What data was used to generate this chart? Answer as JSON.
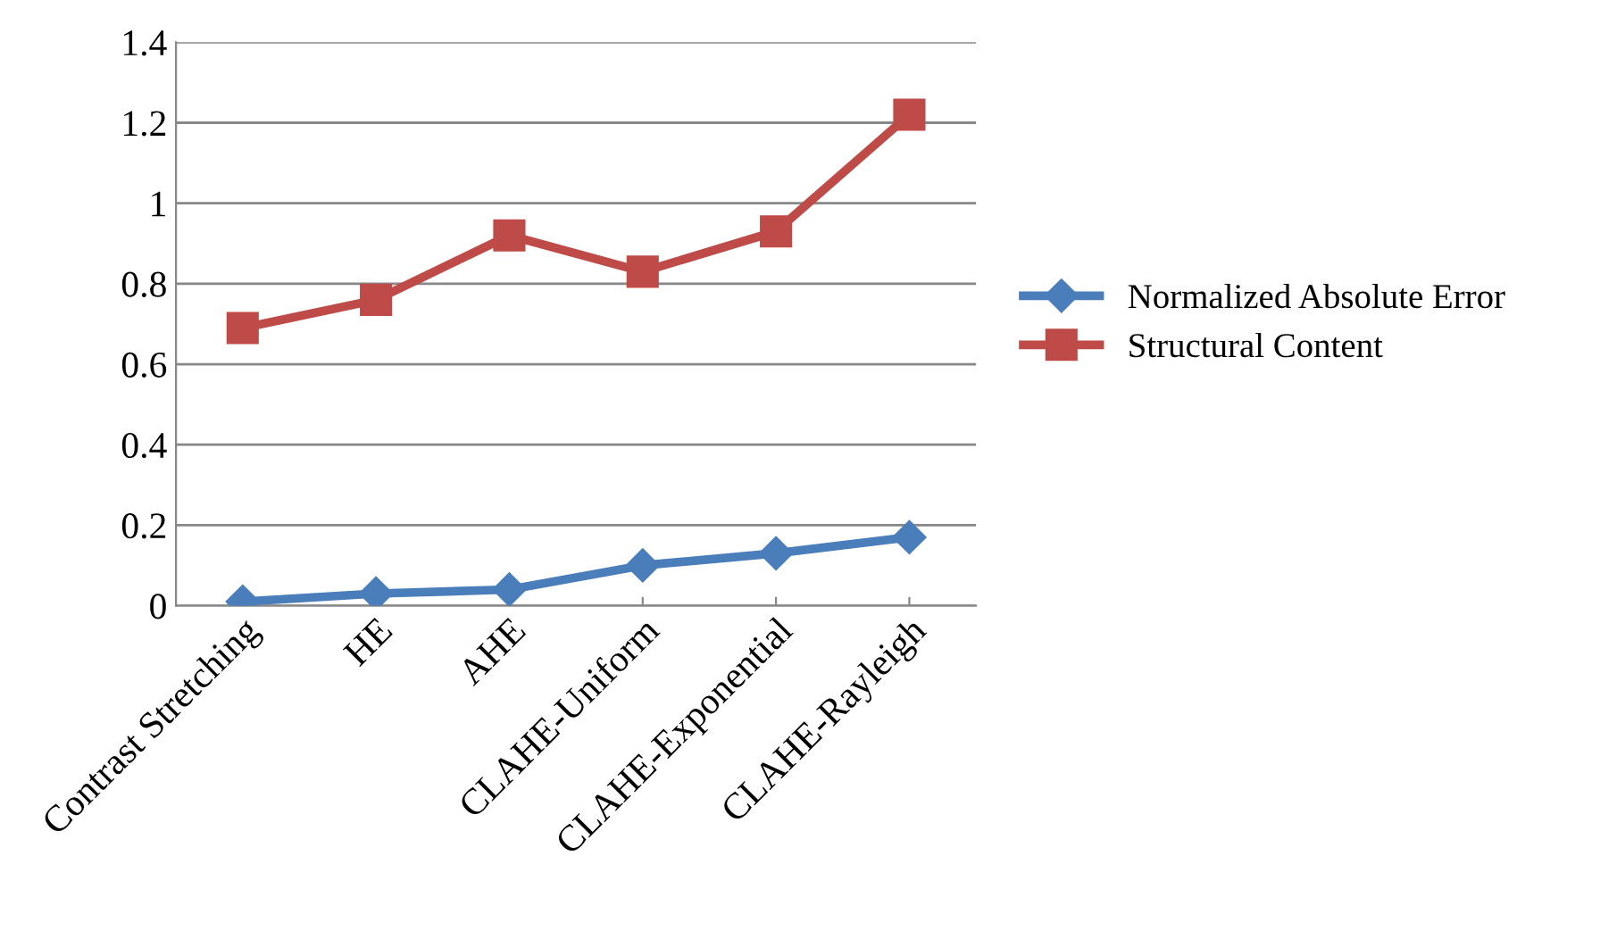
{
  "chart_data": {
    "type": "line",
    "categories": [
      "Contrast Stretching",
      "HE",
      "AHE",
      "CLAHE-Uniform",
      "CLAHE-Exponential",
      "CLAHE-Rayleigh"
    ],
    "series": [
      {
        "name": "Normalized Absolute Error",
        "color": "#4a7ebb",
        "values": [
          0.01,
          0.03,
          0.04,
          0.1,
          0.13,
          0.17
        ],
        "marker": "diamond"
      },
      {
        "name": "Structural Content",
        "color": "#be4b48",
        "values": [
          0.69,
          0.76,
          0.92,
          0.83,
          0.93,
          1.22
        ],
        "marker": "square"
      }
    ],
    "ylim": [
      0,
      1.4
    ],
    "yticks": [
      0,
      0.2,
      0.4,
      0.6,
      0.8,
      1,
      1.2,
      1.4
    ],
    "grid": "y",
    "legend": "right",
    "line_style": "solid"
  }
}
